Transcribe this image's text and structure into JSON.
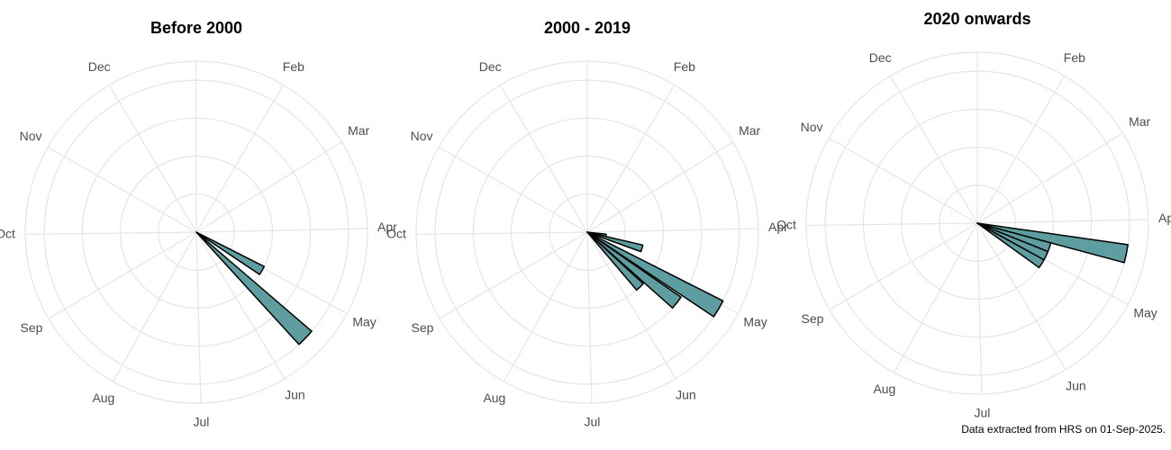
{
  "chart_data": [
    {
      "type": "polar_bar",
      "title": "Before 2000",
      "x": [
        123,
        137
      ],
      "values": [
        2,
        4
      ],
      "color": "#5f9ea0",
      "xlim": [
        1,
        366
      ],
      "xticks": [
        {
          "value": 1,
          "label": null
        },
        {
          "value": 32,
          "label": "Feb"
        },
        {
          "value": 60,
          "label": "Mar"
        },
        {
          "value": 91,
          "label": "Apr"
        },
        {
          "value": 121,
          "label": "May"
        },
        {
          "value": 152,
          "label": "Jun"
        },
        {
          "value": 182,
          "label": "Jul"
        },
        {
          "value": 213,
          "label": "Aug"
        },
        {
          "value": 244,
          "label": "Sep"
        },
        {
          "value": 274,
          "label": "Oct"
        },
        {
          "value": 305,
          "label": "Nov"
        },
        {
          "value": 335,
          "label": "Dec"
        }
      ],
      "ylim": [
        0,
        4.5
      ],
      "yticks": [
        1,
        2,
        3,
        4
      ],
      "grid": true
    },
    {
      "type": "polar_bar",
      "title": "2000 - 2019",
      "x": [
        102,
        109,
        123,
        131,
        139
      ],
      "values": [
        0.5,
        1.5,
        4,
        3,
        2
      ],
      "color": "#5f9ea0",
      "xlim": [
        1,
        366
      ],
      "xticks": [
        {
          "value": 1,
          "label": null
        },
        {
          "value": 32,
          "label": "Feb"
        },
        {
          "value": 60,
          "label": "Mar"
        },
        {
          "value": 91,
          "label": "Apr"
        },
        {
          "value": 121,
          "label": "May"
        },
        {
          "value": 152,
          "label": "Jun"
        },
        {
          "value": 182,
          "label": "Jul"
        },
        {
          "value": 213,
          "label": "Aug"
        },
        {
          "value": 244,
          "label": "Sep"
        },
        {
          "value": 274,
          "label": "Oct"
        },
        {
          "value": 305,
          "label": "Nov"
        },
        {
          "value": 335,
          "label": "Dec"
        }
      ],
      "ylim": [
        0,
        4.5
      ],
      "yticks": [
        1,
        2,
        3,
        4
      ],
      "grid": true
    },
    {
      "type": "polar_bar",
      "title": "2020 onwards",
      "x": [
        104,
        111,
        118,
        125
      ],
      "values": [
        4,
        2,
        2,
        2
      ],
      "color": "#5f9ea0",
      "xlim": [
        1,
        366
      ],
      "xticks": [
        {
          "value": 1,
          "label": null
        },
        {
          "value": 32,
          "label": "Feb"
        },
        {
          "value": 60,
          "label": "Mar"
        },
        {
          "value": 91,
          "label": "Apr"
        },
        {
          "value": 121,
          "label": "May"
        },
        {
          "value": 152,
          "label": "Jun"
        },
        {
          "value": 182,
          "label": "Jul"
        },
        {
          "value": 213,
          "label": "Aug"
        },
        {
          "value": 244,
          "label": "Sep"
        },
        {
          "value": 274,
          "label": "Oct"
        },
        {
          "value": 305,
          "label": "Nov"
        },
        {
          "value": 335,
          "label": "Dec"
        }
      ],
      "ylim": [
        0,
        4.5
      ],
      "yticks": [
        1,
        2,
        3,
        4
      ],
      "grid": true
    }
  ],
  "caption": "Data extracted from HRS on 01-Sep-2025."
}
